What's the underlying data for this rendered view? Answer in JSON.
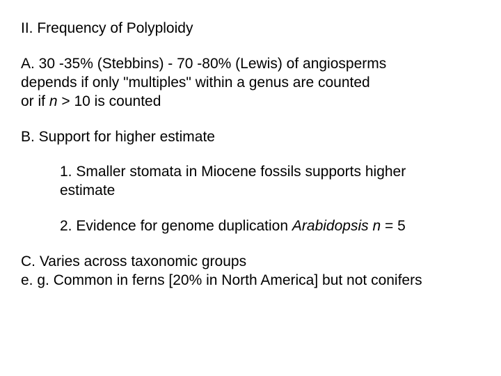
{
  "slide": {
    "background_color": "#ffffff",
    "text_color": "#000000",
    "font_family": "Arial",
    "font_size_pt": 16,
    "title": "II. Frequency of Polyploidy",
    "sectionA": {
      "line1": "A. 30 -35% (Stebbins) - 70 -80% (Lewis) of angiosperms",
      "line2": "depends if only \"multiples\" within a genus are counted",
      "line3_pre": "or if ",
      "line3_italic": "n",
      "line3_post": " > 10 is counted"
    },
    "sectionB": {
      "heading": "B. Support for higher estimate",
      "point1_line1": "1. Smaller stomata in Miocene fossils supports higher",
      "point1_line2": "estimate",
      "point2_pre": "2. Evidence for genome duplication ",
      "point2_italic": "Arabidopsis  n",
      "point2_post": " = 5"
    },
    "sectionC": {
      "line1": "C. Varies across taxonomic groups",
      "line2": "e. g. Common in ferns [20% in North America] but not conifers"
    }
  }
}
